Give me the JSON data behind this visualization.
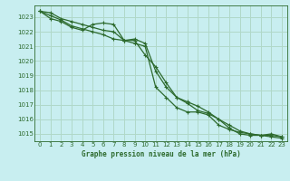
{
  "title": "Graphe pression niveau de la mer (hPa)",
  "bg_color": "#c8eef0",
  "grid_color": "#b0d8c8",
  "line_color": "#2d6a2d",
  "xlim": [
    -0.5,
    23.5
  ],
  "ylim": [
    1014.5,
    1023.8
  ],
  "yticks": [
    1015,
    1016,
    1017,
    1018,
    1019,
    1020,
    1021,
    1022,
    1023
  ],
  "xticks": [
    0,
    1,
    2,
    3,
    4,
    5,
    6,
    7,
    8,
    9,
    10,
    11,
    12,
    13,
    14,
    15,
    16,
    17,
    18,
    19,
    20,
    21,
    22,
    23
  ],
  "series": [
    [
      1023.4,
      1023.3,
      1022.9,
      1022.7,
      1022.5,
      1022.3,
      1022.1,
      1022.0,
      1021.4,
      1021.2,
      1021.0,
      1018.2,
      1017.5,
      1016.8,
      1016.5,
      1016.5,
      1016.3,
      1015.6,
      1015.3,
      1015.1,
      1015.0,
      1014.9,
      1014.9,
      1014.8
    ],
    [
      1023.4,
      1023.1,
      1022.8,
      1022.4,
      1022.2,
      1022.0,
      1021.8,
      1021.5,
      1021.4,
      1021.5,
      1021.2,
      1019.3,
      1018.2,
      1017.5,
      1017.1,
      1016.6,
      1016.4,
      1016.0,
      1015.6,
      1015.2,
      1015.0,
      1014.9,
      1015.0,
      1014.8
    ],
    [
      1023.4,
      1022.9,
      1022.7,
      1022.3,
      1022.1,
      1022.5,
      1022.6,
      1022.5,
      1021.4,
      1021.4,
      1020.4,
      1019.6,
      1018.5,
      1017.5,
      1017.2,
      1016.9,
      1016.5,
      1016.0,
      1015.4,
      1015.0,
      1014.9,
      1014.9,
      1014.8,
      1014.7
    ]
  ]
}
